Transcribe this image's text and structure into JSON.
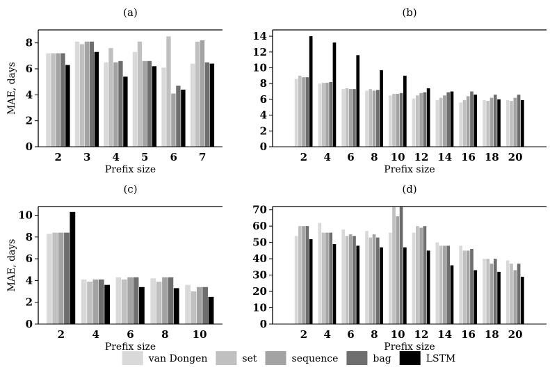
{
  "legend": {
    "placement": "bottom-center",
    "entries": [
      {
        "name": "van Dongen",
        "color": "#d9d9d9"
      },
      {
        "name": "set",
        "color": "#c0c0c0"
      },
      {
        "name": "sequence",
        "color": "#a3a3a3"
      },
      {
        "name": "bag",
        "color": "#6e6e6e"
      },
      {
        "name": "LSTM",
        "color": "#000000"
      }
    ]
  },
  "chart_data": [
    {
      "type": "bar",
      "title": "(a)",
      "xlabel": "Prefix size",
      "ylabel": "MAE, days",
      "categories": [
        "2",
        "3",
        "4",
        "5",
        "6",
        "7"
      ],
      "ylim": [
        0,
        9
      ],
      "yticks": [
        0,
        2,
        4,
        6,
        8
      ],
      "series": [
        {
          "name": "van Dongen",
          "values": [
            7.2,
            8.1,
            6.5,
            7.3,
            6.1,
            6.4
          ]
        },
        {
          "name": "set",
          "values": [
            7.2,
            7.9,
            7.6,
            8.1,
            8.5,
            8.1
          ]
        },
        {
          "name": "sequence",
          "values": [
            7.2,
            8.1,
            6.5,
            6.6,
            4.1,
            8.2
          ]
        },
        {
          "name": "bag",
          "values": [
            7.2,
            8.1,
            6.6,
            6.6,
            4.7,
            6.5
          ]
        },
        {
          "name": "LSTM",
          "values": [
            6.3,
            7.3,
            5.4,
            6.2,
            4.4,
            6.4
          ]
        }
      ]
    },
    {
      "type": "bar",
      "title": "(b)",
      "xlabel": "Prefix size",
      "ylabel": "",
      "categories": [
        "2",
        "4",
        "6",
        "8",
        "10",
        "12",
        "14",
        "16",
        "18",
        "20"
      ],
      "ylim": [
        0,
        14.8
      ],
      "yticks": [
        0,
        2,
        4,
        6,
        8,
        10,
        12,
        14
      ],
      "series": [
        {
          "name": "van Dongen",
          "values": [
            8.6,
            8.0,
            7.3,
            7.1,
            6.5,
            6.1,
            5.9,
            5.6,
            5.9,
            5.9
          ]
        },
        {
          "name": "set",
          "values": [
            9.0,
            8.1,
            7.4,
            7.3,
            6.7,
            6.5,
            6.2,
            5.9,
            5.8,
            5.8
          ]
        },
        {
          "name": "sequence",
          "values": [
            8.8,
            8.1,
            7.3,
            7.1,
            6.7,
            6.8,
            6.5,
            6.4,
            6.2,
            6.2
          ]
        },
        {
          "name": "bag",
          "values": [
            8.8,
            8.2,
            7.3,
            7.2,
            6.8,
            6.9,
            6.9,
            7.0,
            6.6,
            6.6
          ]
        },
        {
          "name": "LSTM",
          "values": [
            14.0,
            13.2,
            11.6,
            9.7,
            9.0,
            7.4,
            7.0,
            6.6,
            6.0,
            5.9
          ]
        }
      ]
    },
    {
      "type": "bar",
      "title": "(c)",
      "xlabel": "Prefix size",
      "ylabel": "MAE, days",
      "categories": [
        "2",
        "4",
        "6",
        "8",
        "10"
      ],
      "ylim": [
        0,
        10.8
      ],
      "yticks": [
        0,
        2,
        4,
        6,
        8,
        10
      ],
      "series": [
        {
          "name": "van Dongen",
          "values": [
            8.3,
            4.1,
            4.3,
            4.2,
            3.6
          ]
        },
        {
          "name": "set",
          "values": [
            8.4,
            3.9,
            4.1,
            3.9,
            3.0
          ]
        },
        {
          "name": "sequence",
          "values": [
            8.4,
            4.1,
            4.3,
            4.3,
            3.4
          ]
        },
        {
          "name": "bag",
          "values": [
            8.4,
            4.1,
            4.3,
            4.3,
            3.4
          ]
        },
        {
          "name": "LSTM",
          "values": [
            10.3,
            3.6,
            3.4,
            3.3,
            2.5
          ]
        }
      ]
    },
    {
      "type": "bar",
      "title": "(d)",
      "xlabel": "Prefix size",
      "ylabel": "",
      "categories": [
        "2",
        "4",
        "6",
        "8",
        "10",
        "12",
        "14",
        "16",
        "18",
        "20"
      ],
      "ylim": [
        0,
        72
      ],
      "yticks": [
        0,
        10,
        20,
        30,
        40,
        50,
        60,
        70
      ],
      "series": [
        {
          "name": "van Dongen",
          "values": [
            54,
            62,
            58,
            57,
            56,
            56,
            50,
            48,
            40,
            39
          ]
        },
        {
          "name": "set",
          "values": [
            60,
            56,
            54,
            53,
            72,
            60,
            48,
            45,
            40,
            37
          ]
        },
        {
          "name": "sequence",
          "values": [
            60,
            56,
            55,
            55,
            66,
            59,
            48,
            45,
            37,
            33
          ]
        },
        {
          "name": "bag",
          "values": [
            60,
            56,
            54,
            53,
            72,
            60,
            48,
            46,
            40,
            37
          ]
        },
        {
          "name": "LSTM",
          "values": [
            52,
            49,
            48,
            47,
            47,
            45,
            36,
            33,
            32,
            29
          ]
        }
      ]
    }
  ]
}
